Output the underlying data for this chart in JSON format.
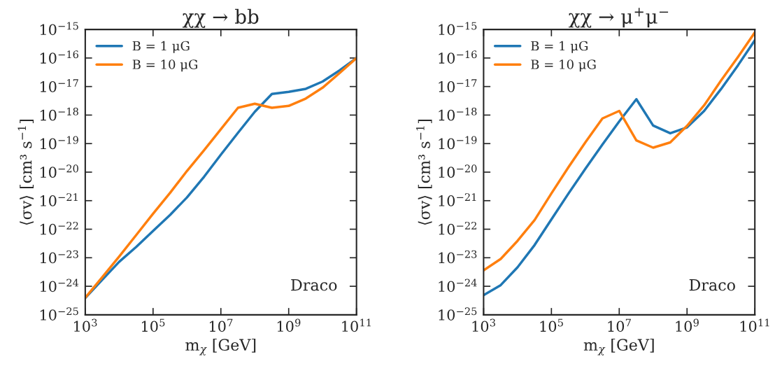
{
  "chart_data": [
    {
      "type": "line",
      "title": "χχ → bb",
      "xlabel": "m$_{χ}$ [GeV]",
      "ylabel": "⟨σv⟩ [cm³ s$^{−1}$]",
      "log": "xy",
      "legend": "top left",
      "grid": false,
      "annotations": [
        "Draco"
      ],
      "xlim": [
        1000.0,
        100000000000.0
      ],
      "ylim": [
        1e-25,
        1e-15
      ],
      "xticks": [
        {
          "value": 1000.0,
          "label": "10$^{3}$"
        },
        {
          "value": 100000.0,
          "label": "10$^{5}$"
        },
        {
          "value": 10000000.0,
          "label": "10$^{7}$"
        },
        {
          "value": 1000000000.0,
          "label": "10$^{9}$"
        },
        {
          "value": 100000000000.0,
          "label": "10$^{11}$"
        }
      ],
      "yticks": [
        {
          "value": 1e-25,
          "label": "10$^{−25}$"
        },
        {
          "value": 1e-24,
          "label": "10$^{−24}$"
        },
        {
          "value": 1e-23,
          "label": "10$^{−23}$"
        },
        {
          "value": 1e-22,
          "label": "10$^{−22}$"
        },
        {
          "value": 1e-21,
          "label": "10$^{−21}$"
        },
        {
          "value": 1e-20,
          "label": "10$^{−20}$"
        },
        {
          "value": 1e-19,
          "label": "10$^{−19}$"
        },
        {
          "value": 1e-18,
          "label": "10$^{−18}$"
        },
        {
          "value": 1e-17,
          "label": "10$^{−17}$"
        },
        {
          "value": 1e-16,
          "label": "10$^{−16}$"
        },
        {
          "value": 1e-15,
          "label": "10$^{−15}$"
        }
      ],
      "x": [
        1000.0,
        3200.0,
        10000.0,
        32000.0,
        100000.0,
        320000.0,
        1000000.0,
        3200000.0,
        10000000.0,
        32000000.0,
        100000000.0,
        320000000.0,
        1000000000.0,
        3200000000.0,
        10000000000.0,
        32000000000.0,
        100000000000.0
      ],
      "series": [
        {
          "name": "B = 1 μG",
          "color": "#1f77b4",
          "values": [
            3.9e-25,
            1.7e-24,
            7.2e-24,
            2.4e-23,
            8.7e-23,
            3.2e-22,
            1.3e-21,
            6.9e-21,
            4.1e-20,
            2.4e-19,
            1.3e-18,
            5.5e-18,
            6.5e-18,
            8.3e-18,
            1.5e-17,
            3.7e-17,
            1e-16
          ]
        },
        {
          "name": "B = 10 μG",
          "color": "#ff7f0e",
          "values": [
            4e-25,
            2.1e-24,
            1.1e-23,
            6.3e-23,
            3.5e-22,
            1.9e-21,
            1.1e-20,
            5.9e-20,
            3.2e-19,
            1.8e-18,
            2.5e-18,
            1.8e-18,
            2.1e-18,
            3.8e-18,
            9.1e-18,
            3e-17,
            1e-16
          ]
        }
      ]
    },
    {
      "type": "line",
      "title": "χχ → μ$^{+}$μ$^{−}$",
      "xlabel": "m$_{χ}$ [GeV]",
      "ylabel": "⟨σv⟩ [cm³ s$^{−1}$]",
      "log": "xy",
      "legend": "top left",
      "grid": false,
      "annotations": [
        "Draco"
      ],
      "xlim": [
        1000.0,
        100000000000.0
      ],
      "ylim": [
        1e-25,
        1e-15
      ],
      "xticks": [
        {
          "value": 1000.0,
          "label": "10$^{3}$"
        },
        {
          "value": 100000.0,
          "label": "10$^{5}$"
        },
        {
          "value": 10000000.0,
          "label": "10$^{7}$"
        },
        {
          "value": 1000000000.0,
          "label": "10$^{9}$"
        },
        {
          "value": 100000000000.0,
          "label": "10$^{11}$"
        }
      ],
      "yticks": [
        {
          "value": 1e-25,
          "label": "10$^{−25}$"
        },
        {
          "value": 1e-24,
          "label": "10$^{−24}$"
        },
        {
          "value": 1e-23,
          "label": "10$^{−23}$"
        },
        {
          "value": 1e-22,
          "label": "10$^{−22}$"
        },
        {
          "value": 1e-21,
          "label": "10$^{−21}$"
        },
        {
          "value": 1e-20,
          "label": "10$^{−20}$"
        },
        {
          "value": 1e-19,
          "label": "10$^{−19}$"
        },
        {
          "value": 1e-18,
          "label": "10$^{−18}$"
        },
        {
          "value": 1e-17,
          "label": "10$^{−17}$"
        },
        {
          "value": 1e-16,
          "label": "10$^{−16}$"
        },
        {
          "value": 1e-15,
          "label": "10$^{−15}$"
        }
      ],
      "x": [
        1000.0,
        3200.0,
        10000.0,
        32000.0,
        100000.0,
        320000.0,
        1000000.0,
        3200000.0,
        10000000.0,
        32000000.0,
        100000000.0,
        320000000.0,
        1000000000.0,
        3200000000.0,
        10000000000.0,
        32000000000.0,
        100000000000.0
      ],
      "series": [
        {
          "name": "B = 1 μG",
          "color": "#1f77b4",
          "values": [
            4.9e-25,
            1.1e-24,
            4.6e-24,
            2.8e-23,
            2.2e-22,
            1.8e-21,
            1.3e-20,
            9.3e-20,
            6e-19,
            3.6e-18,
            4.3e-19,
            2.3e-19,
            3.7e-19,
            1.4e-18,
            8.1e-18,
            5.6e-17,
            4.2e-16
          ]
        },
        {
          "name": "B = 10 μG",
          "color": "#ff7f0e",
          "values": [
            3.6e-24,
            9.1e-24,
            3.9e-23,
            2.1e-22,
            1.8e-21,
            1.5e-20,
            1.1e-19,
            7.6e-19,
            1.4e-18,
            1.3e-19,
            7.2e-20,
            1.1e-19,
            4.2e-19,
            2.2e-18,
            1.6e-17,
            1.1e-16,
            7.9e-16
          ]
        }
      ]
    }
  ]
}
